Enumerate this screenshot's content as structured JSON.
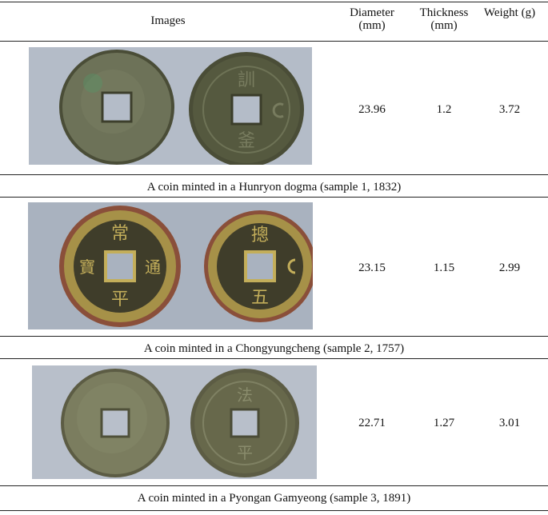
{
  "table": {
    "headers": {
      "images": "Images",
      "diameter": "Diameter (mm)",
      "thickness": "Thickness (mm)",
      "weight": "Weight (g)"
    },
    "rows": [
      {
        "diameter": "23.96",
        "thickness": "1.2",
        "weight": "3.72",
        "caption": "A coin minted in a Hunryon dogma (sample 1, 1832)",
        "photo": {
          "background": "#b4bcc8",
          "coin_outer": "#6d7258",
          "coin_inner": "#55593f",
          "rim": "#4a4d37"
        }
      },
      {
        "diameter": "23.15",
        "thickness": "1.15",
        "weight": "2.99",
        "caption": "A coin minted in a Chongyungcheng (sample 2, 1757)",
        "photo": {
          "background": "#a9b2bf",
          "coin_outer": "#a69148",
          "coin_inner": "#3f3d2a",
          "rim": "#8a4f3a"
        }
      },
      {
        "diameter": "22.71",
        "thickness": "1.27",
        "weight": "3.01",
        "caption": "A coin minted in a Pyongan Gamyeong (sample 3, 1891)",
        "photo": {
          "background": "#b8bfca",
          "coin_outer": "#7b7d5f",
          "coin_inner": "#67684b",
          "rim": "#5c5c44"
        }
      }
    ]
  }
}
